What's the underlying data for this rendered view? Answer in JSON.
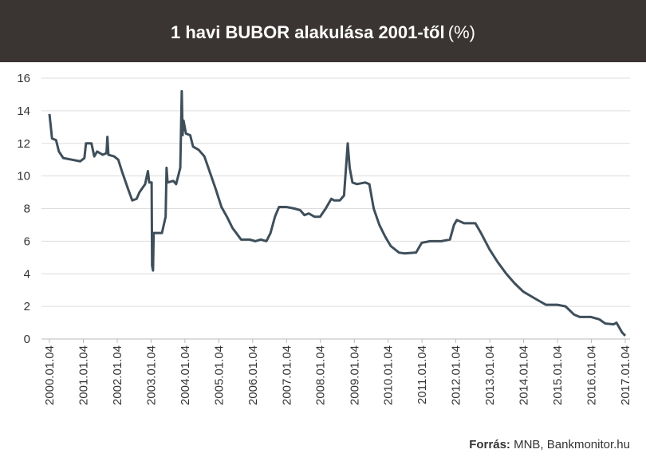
{
  "chart_data": {
    "type": "line",
    "title": "1 havi BUBOR alakulása 2001-től",
    "title_unit": "(%)",
    "source_label": "Forrás:",
    "source": "MNB, Bankmonitor.hu",
    "grid": true,
    "color": "#3e4f5b",
    "xlim": [
      "2000.01.04",
      "2017.01.04"
    ],
    "xticks": [
      "2000.01.04",
      "2001.01.04",
      "2002.01.04",
      "2003.01.04",
      "2004.01.04",
      "2005.01.04",
      "2006.01.04",
      "2007.01.04",
      "2008.01.04",
      "2009.01.04",
      "2010.01.04",
      "2011.01.04",
      "2012.01.04",
      "2013.01.04",
      "2014.01.04",
      "2015.01.04",
      "2016.01.04",
      "2017.01.04"
    ],
    "ylim": [
      0,
      16
    ],
    "yticks": [
      0,
      2,
      4,
      6,
      8,
      10,
      12,
      14,
      16
    ],
    "x": [
      "2000.01.04",
      "2000.02.01",
      "2000.03.15",
      "2000.04.15",
      "2000.06.01",
      "2000.09.01",
      "2000.12.01",
      "2001.01.15",
      "2001.02.01",
      "2001.04.01",
      "2001.05.01",
      "2001.06.01",
      "2001.08.01",
      "2001.09.10",
      "2001.09.20",
      "2001.10.01",
      "2001.12.01",
      "2002.01.15",
      "2002.03.01",
      "2002.05.01",
      "2002.06.15",
      "2002.08.01",
      "2002.09.01",
      "2002.11.01",
      "2002.12.01",
      "2002.12.15",
      "2003.01.01",
      "2003.01.10",
      "2003.01.15",
      "2003.01.25",
      "2003.02.01",
      "2003.05.01",
      "2003.06.10",
      "2003.06.20",
      "2003.07.01",
      "2003.09.01",
      "2003.10.01",
      "2003.11.15",
      "2003.12.01",
      "2003.12.10",
      "2003.12.20",
      "2004.01.15",
      "2004.03.01",
      "2004.04.01",
      "2004.06.01",
      "2004.08.01",
      "2004.10.01",
      "2004.12.01",
      "2005.02.01",
      "2005.04.01",
      "2005.06.01",
      "2005.09.01",
      "2005.12.01",
      "2006.02.01",
      "2006.04.01",
      "2006.06.01",
      "2006.07.15",
      "2006.09.01",
      "2006.10.15",
      "2007.01.01",
      "2007.04.01",
      "2007.06.01",
      "2007.07.15",
      "2007.09.01",
      "2007.11.01",
      "2008.01.01",
      "2008.03.01",
      "2008.05.01",
      "2008.06.01",
      "2008.08.01",
      "2008.09.15",
      "2008.10.25",
      "2008.11.15",
      "2008.12.15",
      "2009.02.01",
      "2009.05.01",
      "2009.06.15",
      "2009.08.01",
      "2009.10.01",
      "2009.12.01",
      "2010.02.01",
      "2010.05.01",
      "2010.07.01",
      "2010.11.01",
      "2011.01.01",
      "2011.04.01",
      "2011.08.01",
      "2011.11.01",
      "2011.12.15",
      "2012.01.15",
      "2012.04.01",
      "2012.08.01",
      "2012.10.01",
      "2013.01.01",
      "2013.04.01",
      "2013.07.01",
      "2013.10.01",
      "2014.01.01",
      "2014.04.01",
      "2014.07.01",
      "2014.09.01",
      "2015.01.01",
      "2015.04.01",
      "2015.07.01",
      "2015.09.01",
      "2016.01.01",
      "2016.04.01",
      "2016.06.01",
      "2016.09.01",
      "2016.10.01",
      "2016.12.01",
      "2017.01.04"
    ],
    "values": [
      13.8,
      12.3,
      12.2,
      11.5,
      11.1,
      11.0,
      10.9,
      11.1,
      12.0,
      12.0,
      11.2,
      11.5,
      11.3,
      11.4,
      12.4,
      11.3,
      11.2,
      11.0,
      10.2,
      9.2,
      8.5,
      8.6,
      9.0,
      9.5,
      10.3,
      9.6,
      9.6,
      9.6,
      4.5,
      4.2,
      6.5,
      6.5,
      7.5,
      10.5,
      9.6,
      9.7,
      9.5,
      10.5,
      15.2,
      12.5,
      13.4,
      12.6,
      12.5,
      11.8,
      11.6,
      11.2,
      10.2,
      9.2,
      8.1,
      7.5,
      6.8,
      6.1,
      6.1,
      6.0,
      6.1,
      6.0,
      6.5,
      7.5,
      8.1,
      8.1,
      8.0,
      7.9,
      7.6,
      7.7,
      7.5,
      7.5,
      8.0,
      8.6,
      8.5,
      8.5,
      8.8,
      12.0,
      10.5,
      9.6,
      9.5,
      9.6,
      9.5,
      8.0,
      7.0,
      6.3,
      5.7,
      5.3,
      5.25,
      5.3,
      5.9,
      6.0,
      6.0,
      6.1,
      7.0,
      7.3,
      7.1,
      7.1,
      6.5,
      5.5,
      4.7,
      4.0,
      3.4,
      2.9,
      2.6,
      2.3,
      2.1,
      2.1,
      2.0,
      1.5,
      1.35,
      1.35,
      1.2,
      0.95,
      0.9,
      1.0,
      0.4,
      0.2
    ]
  }
}
